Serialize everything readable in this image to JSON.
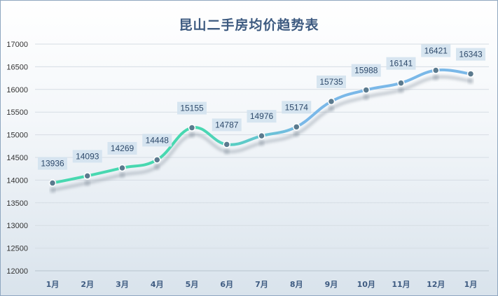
{
  "chart_data": {
    "type": "line",
    "title": "昆山二手房均价趋势表",
    "xlabel": "",
    "ylabel": "",
    "categories": [
      "1月",
      "2月",
      "3月",
      "4月",
      "5月",
      "6月",
      "7月",
      "8月",
      "9月",
      "10月",
      "11月",
      "12月",
      "1月"
    ],
    "series": [
      {
        "values": [
          13936,
          14093,
          14269,
          14448,
          15155,
          14787,
          14976,
          15174,
          15735,
          15988,
          16141,
          16421,
          16343
        ]
      }
    ],
    "ylim": [
      12000,
      17000
    ],
    "yticks": [
      12000,
      12500,
      13000,
      13500,
      14000,
      14500,
      15000,
      15500,
      16000,
      16500,
      17000
    ],
    "grid": true,
    "smooth": true,
    "colors": {
      "gradient_start": "#48d8b0",
      "gradient_end": "#7ab8e8",
      "marker_fill": "#5b7a8e",
      "marker_stroke": "#ffffff",
      "label_bg": "#d3e2ee",
      "label_text": "#2e4a6b",
      "title": "#3d5a80",
      "grid": "#d6dde4"
    }
  }
}
